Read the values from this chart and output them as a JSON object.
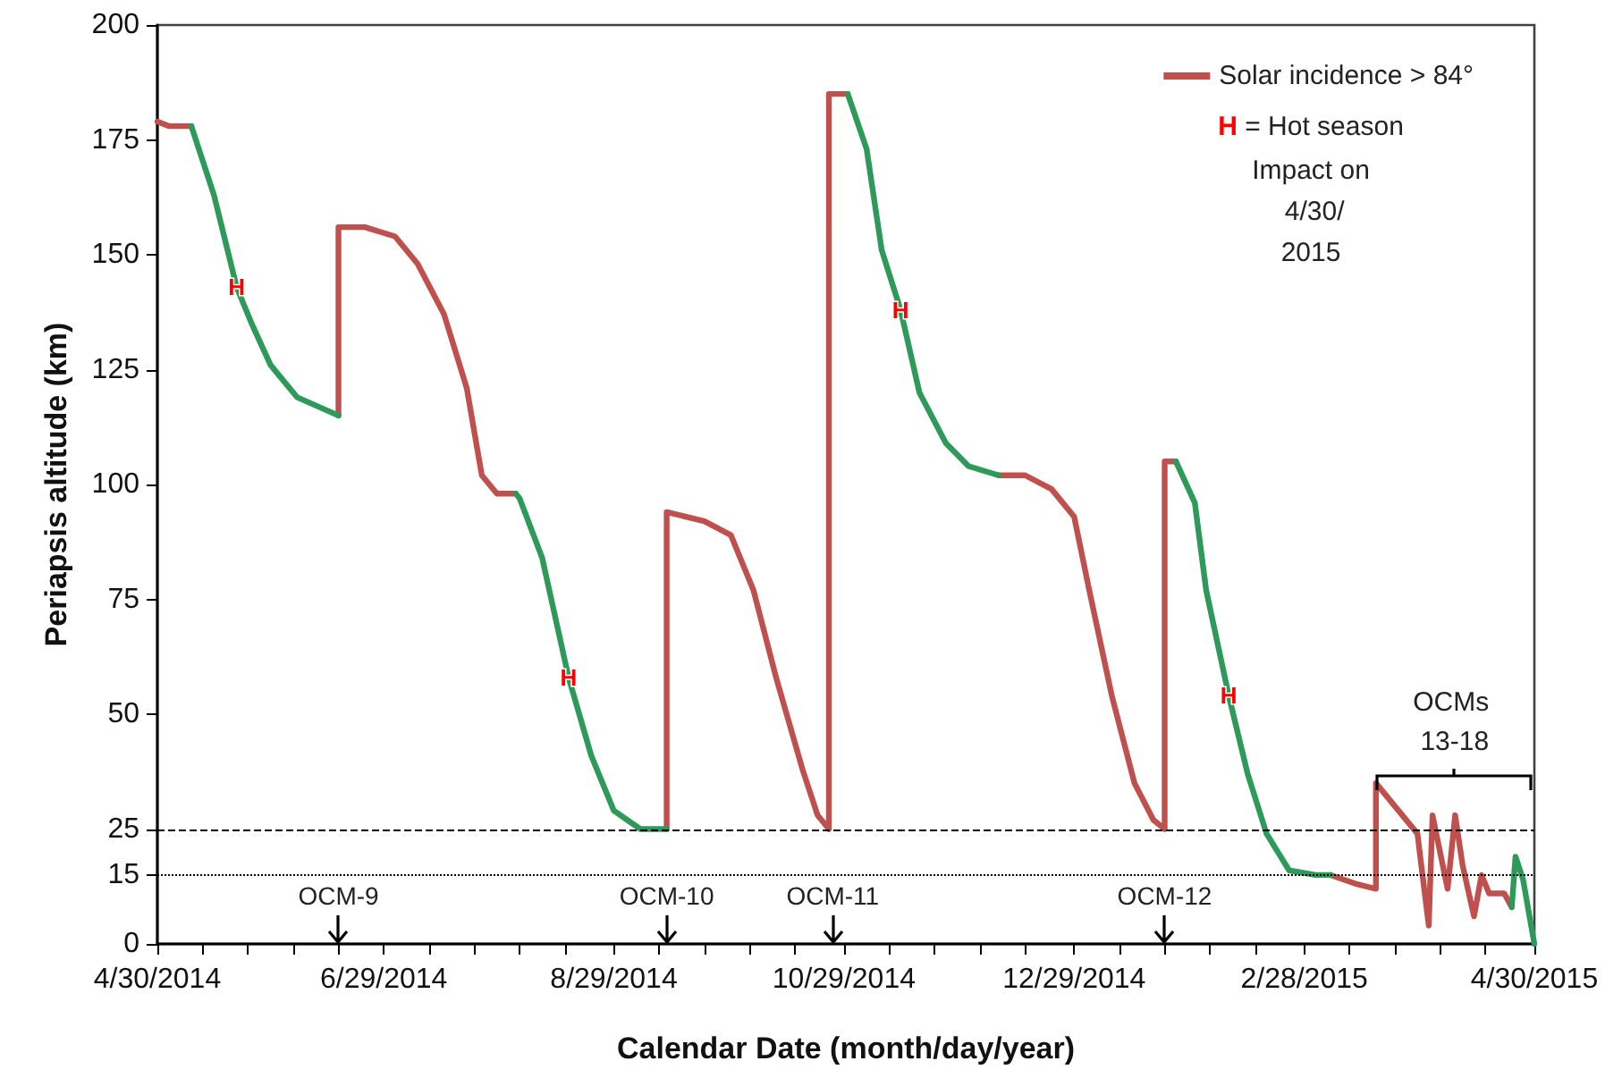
{
  "chart_data": {
    "type": "line",
    "xlabel": "Calendar Date (month/day/year)",
    "ylabel": "Periapsis altitude (km)",
    "xlim": [
      "2014-04-30",
      "2015-04-30"
    ],
    "xticks": [
      {
        "value": "2014-04-30",
        "label": "4/30/2014"
      },
      {
        "value": "2014-05-12",
        "label": null
      },
      {
        "value": "2014-05-24",
        "label": null
      },
      {
        "value": "2014-06-05",
        "label": null
      },
      {
        "value": "2014-06-17",
        "label": null
      },
      {
        "value": "2014-06-29",
        "label": "6/29/2014"
      },
      {
        "value": "2014-07-11",
        "label": null
      },
      {
        "value": "2014-07-23",
        "label": null
      },
      {
        "value": "2014-08-04",
        "label": null
      },
      {
        "value": "2014-08-16",
        "label": null
      },
      {
        "value": "2014-08-29",
        "label": "8/29/2014"
      },
      {
        "value": "2014-09-10",
        "label": null
      },
      {
        "value": "2014-09-22",
        "label": null
      },
      {
        "value": "2014-10-04",
        "label": null
      },
      {
        "value": "2014-10-16",
        "label": null
      },
      {
        "value": "2014-10-29",
        "label": "10/29/2014"
      },
      {
        "value": "2014-11-10",
        "label": null
      },
      {
        "value": "2014-11-22",
        "label": null
      },
      {
        "value": "2014-12-04",
        "label": null
      },
      {
        "value": "2014-12-16",
        "label": null
      },
      {
        "value": "2014-12-29",
        "label": "12/29/2014"
      },
      {
        "value": "2015-01-10",
        "label": null
      },
      {
        "value": "2015-01-22",
        "label": null
      },
      {
        "value": "2015-02-03",
        "label": null
      },
      {
        "value": "2015-02-15",
        "label": null
      },
      {
        "value": "2015-02-28",
        "label": "2/28/2015"
      },
      {
        "value": "2015-03-12",
        "label": null
      },
      {
        "value": "2015-03-24",
        "label": null
      },
      {
        "value": "2015-04-05",
        "label": null
      },
      {
        "value": "2015-04-17",
        "label": null
      },
      {
        "value": "2015-04-30",
        "label": "4/30/2015"
      }
    ],
    "ylim": [
      0,
      200
    ],
    "yticks": [
      0,
      15,
      25,
      50,
      75,
      100,
      125,
      150,
      175,
      200
    ],
    "grid": false,
    "legend": "top right",
    "marker": "none",
    "line_style": "solid",
    "series": [
      {
        "name": "Solar incidence > 84°",
        "color": "#c0504d",
        "x": [
          "2014-04-30",
          "2014-05-03",
          "2014-05-09",
          "2014-05-10",
          "2014-06-17",
          "2014-06-17",
          "2014-06-24",
          "2014-07-02",
          "2014-07-08",
          "2014-07-15",
          "2014-07-21",
          "2014-07-25",
          "2014-07-29",
          "2014-08-03",
          "2014-08-04",
          "2014-09-12",
          "2014-09-12",
          "2014-09-22",
          "2014-09-29",
          "2014-10-05",
          "2014-10-11",
          "2014-10-18",
          "2014-10-22",
          "2014-10-25",
          "2014-10-25",
          "2014-10-30",
          "2014-10-31",
          "2014-12-09",
          "2014-12-16",
          "2014-12-23",
          "2014-12-29",
          "2015-01-02",
          "2015-01-08",
          "2015-01-14",
          "2015-01-19",
          "2015-01-22",
          "2015-01-22",
          "2015-01-25",
          "2015-01-26",
          "2015-03-07",
          "2015-03-14",
          "2015-03-19",
          "2015-03-19",
          "2015-03-30",
          "2015-04-02",
          "2015-04-03",
          "2015-04-07",
          "2015-04-09",
          "2015-04-11",
          "2015-04-14",
          "2015-04-16",
          "2015-04-18",
          "2015-04-22",
          "2015-04-24"
        ],
        "values": [
          179,
          178,
          178,
          null,
          115,
          156,
          156,
          154,
          148,
          137,
          121,
          102,
          98,
          98,
          null,
          25,
          94,
          92,
          89,
          77,
          58,
          38,
          28,
          25,
          185,
          185,
          null,
          102,
          102,
          99,
          93,
          77,
          54,
          35,
          27,
          25,
          105,
          105,
          null,
          15,
          13,
          12,
          35,
          24,
          4,
          28,
          12,
          28,
          17,
          6,
          15,
          11,
          11,
          8
        ]
      },
      {
        "color": "#2e9a5a",
        "x": [
          "2014-05-09",
          "2014-05-15",
          "2014-05-21",
          "2014-05-25",
          "2014-05-30",
          "2014-06-06",
          "2014-06-17",
          "2014-06-18",
          "2014-08-03",
          "2014-08-04",
          "2014-08-10",
          "2014-08-17",
          "2014-08-23",
          "2014-08-29",
          "2014-09-05",
          "2014-09-12",
          "2014-09-13",
          "2014-10-30",
          "2014-11-04",
          "2014-11-08",
          "2014-11-13",
          "2014-11-18",
          "2014-11-25",
          "2014-12-01",
          "2014-12-09",
          "2014-12-10",
          "2015-01-25",
          "2015-01-30",
          "2015-02-02",
          "2015-02-08",
          "2015-02-13",
          "2015-02-18",
          "2015-02-24",
          "2015-03-03",
          "2015-03-07",
          "2015-03-08",
          "2015-04-24",
          "2015-04-25",
          "2015-04-27",
          "2015-04-30"
        ],
        "values": [
          178,
          163,
          143,
          135,
          126,
          119,
          115,
          null,
          98,
          97,
          84,
          58,
          41,
          29,
          25,
          25,
          null,
          185,
          173,
          151,
          138,
          120,
          109,
          104,
          102,
          null,
          105,
          96,
          77,
          54,
          37,
          24,
          16,
          15,
          15,
          null,
          8,
          19,
          14,
          0
        ],
        "value_labels": [
          null,
          null,
          "H",
          null,
          null,
          null,
          null,
          null,
          null,
          null,
          null,
          "H",
          null,
          null,
          null,
          null,
          null,
          null,
          null,
          null,
          "H",
          null,
          null,
          null,
          null,
          null,
          null,
          null,
          null,
          "H",
          null,
          null,
          null,
          null,
          null,
          null,
          null,
          null,
          null,
          null
        ]
      }
    ],
    "ref_lines": [
      {
        "axis": "y",
        "value": 25,
        "color": "#000000",
        "line_style": "dashed"
      },
      {
        "axis": "y",
        "value": 15,
        "color": "#000000",
        "line_style": "dotted"
      }
    ],
    "annotations": [
      "H = Hot season",
      "Impact on 4/30/2015",
      {
        "text": "OCMs 13-18",
        "x": "2015-03-19",
        "y": 35
      },
      {
        "text": "OCM-9",
        "x": "2014-06-17"
      },
      {
        "text": "OCM-10",
        "x": "2014-09-12"
      },
      {
        "text": "OCM-11",
        "x": "2014-10-26"
      },
      {
        "text": "OCM-12",
        "x": "2015-01-22"
      }
    ]
  }
}
